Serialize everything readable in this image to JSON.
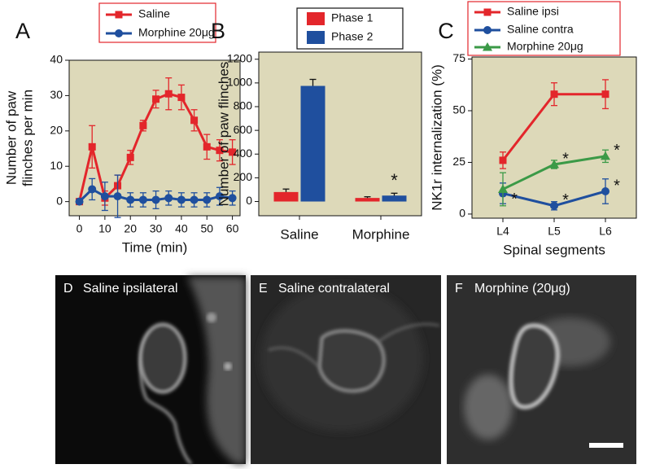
{
  "chart_data": [
    {
      "type": "line",
      "panel": "A",
      "xlabel": "Time (min)",
      "ylabel": [
        "Number of paw",
        "flinches per min"
      ],
      "x": [
        0,
        5,
        10,
        15,
        20,
        25,
        30,
        35,
        40,
        45,
        50,
        55,
        60
      ],
      "xlim": [
        -4,
        63
      ],
      "xticks": [
        0,
        10,
        20,
        30,
        40,
        50,
        60
      ],
      "ylim": [
        -4,
        40
      ],
      "yticks": [
        0,
        10,
        20,
        30,
        40
      ],
      "background": "#ddd9b9",
      "series": [
        {
          "name": "Saline",
          "color": "#e3262b",
          "marker": "square",
          "values": [
            0,
            15.5,
            1,
            4.5,
            12.5,
            21.5,
            29,
            30.5,
            29.5,
            23,
            15.5,
            14.5,
            14
          ],
          "errors": [
            0,
            6,
            2,
            3,
            2,
            1.5,
            2.5,
            4.5,
            3.5,
            3,
            3.5,
            3,
            3.5
          ]
        },
        {
          "name": "Morphine 20μg",
          "color": "#1f4f9e",
          "marker": "circle",
          "values": [
            0,
            3.5,
            1.5,
            1.5,
            0.5,
            0.5,
            0.5,
            1,
            0.5,
            0.5,
            0.5,
            1.5,
            1
          ],
          "errors": [
            0,
            3,
            4,
            6,
            2,
            2,
            2.5,
            2,
            2,
            2,
            2,
            2.5,
            2
          ]
        }
      ]
    },
    {
      "type": "bar",
      "panel": "B",
      "ylabel": [
        "Number of paw flinches"
      ],
      "categories": [
        "Saline",
        "Morphine"
      ],
      "ylim": [
        -120,
        1260
      ],
      "yticks": [
        0,
        200,
        400,
        600,
        800,
        1000,
        1200
      ],
      "background": "#ddd9b9",
      "series": [
        {
          "name": "Phase 1",
          "color": "#e3262b",
          "values": [
            80,
            30
          ],
          "errors": [
            25,
            10
          ]
        },
        {
          "name": "Phase 2",
          "color": "#1f4f9e",
          "values": [
            975,
            50
          ],
          "errors": [
            55,
            20
          ],
          "annotations": [
            null,
            "*"
          ]
        }
      ]
    },
    {
      "type": "line",
      "panel": "C",
      "xlabel": "Spinal segments",
      "ylabel": [
        "NK1r internalization (%)"
      ],
      "categories": [
        "L4",
        "L5",
        "L6"
      ],
      "ylim": [
        -2,
        76
      ],
      "yticks": [
        0,
        25,
        50,
        75
      ],
      "background": "#ddd9b9",
      "series": [
        {
          "name": "Saline ipsi",
          "color": "#e3262b",
          "marker": "square",
          "values": [
            26,
            58,
            58
          ],
          "errors": [
            4,
            5.5,
            7
          ]
        },
        {
          "name": "Saline contra",
          "color": "#1f4f9e",
          "marker": "circle",
          "values": [
            10,
            4,
            11
          ],
          "errors": [
            5,
            2,
            6
          ],
          "annotations": [
            "*",
            "*",
            "*"
          ]
        },
        {
          "name": "Morphine 20μg",
          "color": "#3b9a47",
          "marker": "triangle",
          "values": [
            12,
            24,
            28
          ],
          "errors": [
            8,
            2,
            3
          ],
          "annotations": [
            null,
            "*",
            "*"
          ]
        }
      ]
    }
  ],
  "images": [
    {
      "letter": "D",
      "label": "Saline ipsilateral"
    },
    {
      "letter": "E",
      "label": "Saline contralateral"
    },
    {
      "letter": "F",
      "label": "Morphine (20μg)"
    }
  ]
}
